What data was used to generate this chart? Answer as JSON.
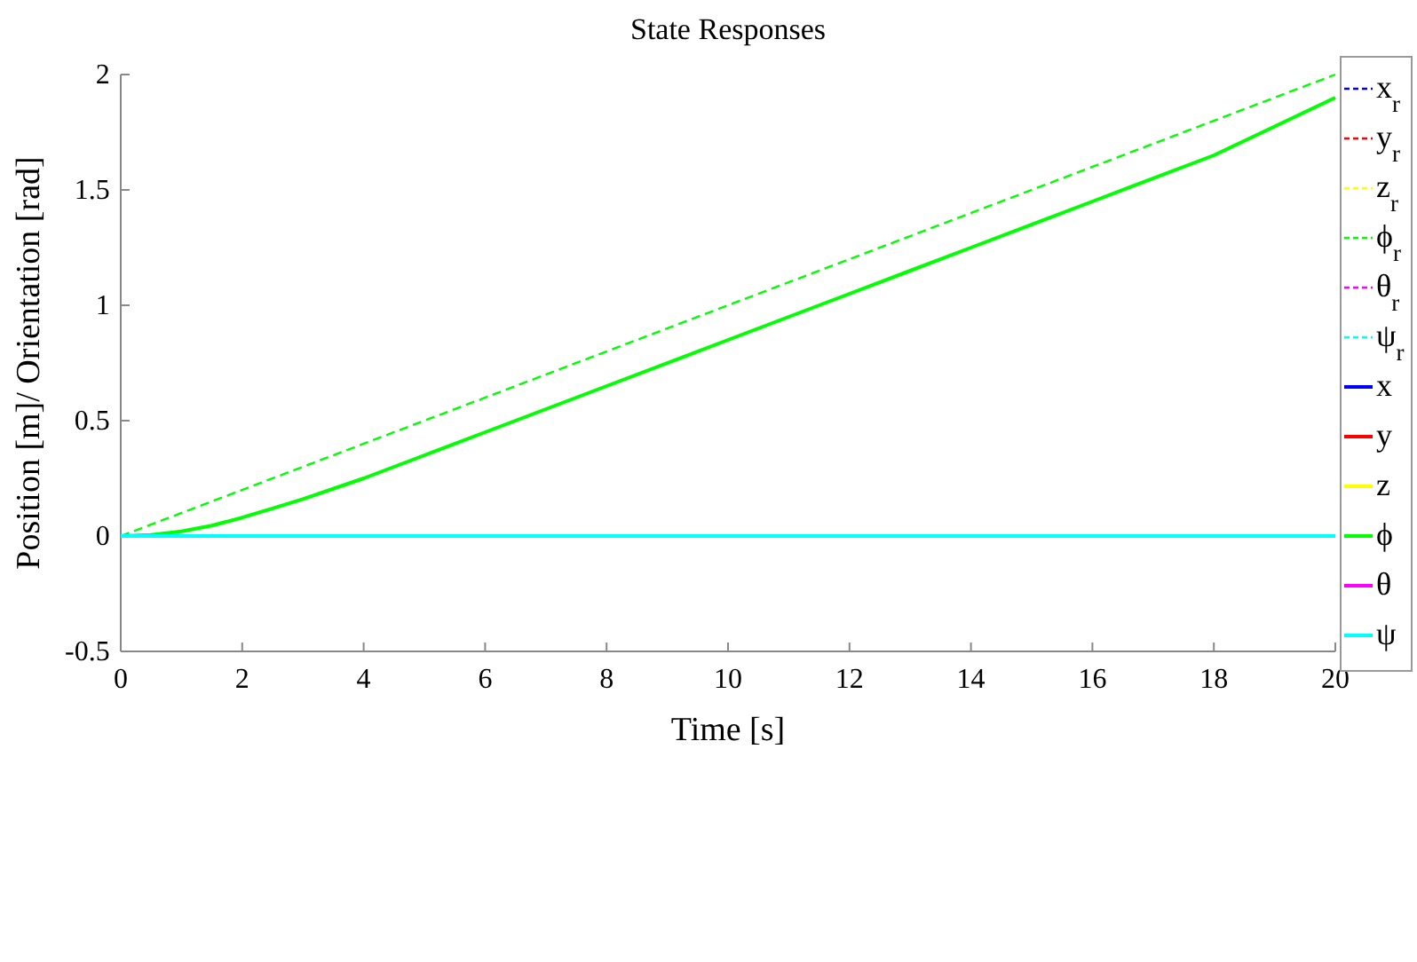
{
  "chart_data": {
    "type": "line",
    "title": "State Responses",
    "xlabel": "Time [s]",
    "ylabel": "Position [m]/ Orientation [rad]",
    "xlim": [
      0,
      20
    ],
    "ylim": [
      -0.5,
      2
    ],
    "xticks": [
      0,
      2,
      4,
      6,
      8,
      10,
      12,
      14,
      16,
      18,
      20
    ],
    "yticks": [
      -0.5,
      0,
      0.5,
      1,
      1.5,
      2
    ],
    "grid": false,
    "legend": "right",
    "marker": "none",
    "series": [
      {
        "name": "x$_{r}$",
        "color": "#0000ff",
        "line_style": "dashed",
        "values": [
          null,
          null
        ]
      },
      {
        "name": "y$_{r}$",
        "color": "#ff0000",
        "line_style": "dashed",
        "values": [
          null,
          null
        ]
      },
      {
        "name": "z$_{r}$",
        "color": "#ffff00",
        "line_style": "dashed",
        "values": [
          null,
          null
        ]
      },
      {
        "name": "ϕ$_{r}$",
        "color": "#00ff00",
        "line_style": "dashed",
        "x": [
          0,
          20
        ],
        "values": [
          0,
          2
        ]
      },
      {
        "name": "θ$_{r}$",
        "color": "#ff00ff",
        "line_style": "dashed",
        "values": [
          null,
          null
        ]
      },
      {
        "name": "ψ$_{r}$",
        "color": "#00ffff",
        "line_style": "dashed",
        "values": [
          null,
          null
        ]
      },
      {
        "name": "x",
        "color": "#0000ff",
        "line_style": "solid",
        "values": [
          null,
          null
        ]
      },
      {
        "name": "y",
        "color": "#ff0000",
        "line_style": "solid",
        "values": [
          null,
          null
        ]
      },
      {
        "name": "z",
        "color": "#ffff00",
        "line_style": "solid",
        "values": [
          null,
          null
        ]
      },
      {
        "name": "ϕ",
        "color": "#00ff00",
        "line_style": "solid",
        "x": [
          0,
          0.5,
          1,
          1.5,
          2,
          2.5,
          3,
          4,
          5,
          6,
          8,
          10,
          12,
          14,
          16,
          18,
          20
        ],
        "values": [
          0,
          0.005,
          0.02,
          0.045,
          0.08,
          0.12,
          0.16,
          0.25,
          0.35,
          0.45,
          0.65,
          0.85,
          1.05,
          1.25,
          1.45,
          1.65,
          1.9
        ]
      },
      {
        "name": "θ",
        "color": "#ff00ff",
        "line_style": "solid",
        "values": [
          null,
          null
        ]
      },
      {
        "name": "ψ",
        "color": "#00ffff",
        "line_style": "solid",
        "x": [
          0,
          20
        ],
        "values": [
          0,
          0
        ]
      }
    ]
  }
}
